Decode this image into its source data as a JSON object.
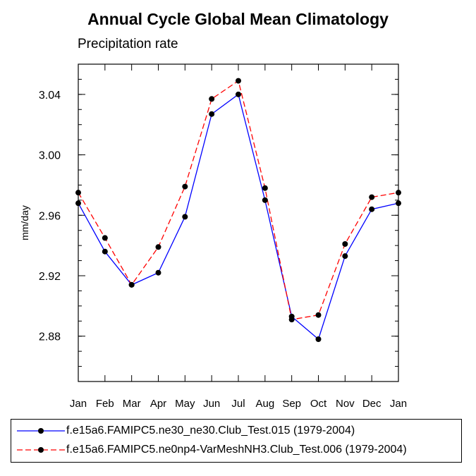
{
  "chart_data": {
    "type": "line",
    "title": "Annual Cycle Global Mean Climatology",
    "subtitle": "Precipitation rate",
    "xlabel": "",
    "ylabel": "mm/day",
    "categories": [
      "Jan",
      "Feb",
      "Mar",
      "Apr",
      "May",
      "Jun",
      "Jul",
      "Aug",
      "Sep",
      "Oct",
      "Nov",
      "Dec",
      "Jan"
    ],
    "ylim": [
      2.85,
      3.06
    ],
    "yticks": [
      2.88,
      2.92,
      2.96,
      3.0,
      3.04
    ],
    "ytick_labels": [
      "2.88",
      "2.92",
      "2.96",
      "3.00",
      "3.04"
    ],
    "series": [
      {
        "name": "f.e15a6.FAMIPC5.ne30_ne30.Club_Test.015 (1979-2004)",
        "color": "#0000ff",
        "style": "solid",
        "values": [
          2.968,
          2.936,
          2.914,
          2.922,
          2.959,
          3.027,
          3.04,
          2.97,
          2.893,
          2.878,
          2.933,
          2.964,
          2.968
        ]
      },
      {
        "name": "f.e15a6.FAMIPC5.ne0np4-VarMeshNH3.Club_Test.006 (1979-2004)",
        "color": "#ff0000",
        "style": "dashed",
        "values": [
          2.975,
          2.945,
          2.914,
          2.939,
          2.979,
          3.037,
          3.049,
          2.978,
          2.891,
          2.894,
          2.941,
          2.972,
          2.975
        ]
      }
    ]
  }
}
